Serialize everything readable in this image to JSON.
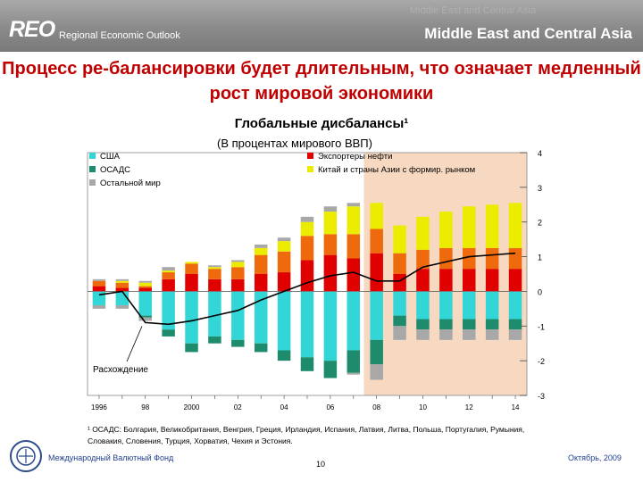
{
  "header": {
    "logo": "REO",
    "subtitle": "Regional Economic Outlook",
    "region": "Middle East and Central Asia"
  },
  "slide_title": "Процесс ре-балансировки будет длительным, что означает медленный рост мировой экономики",
  "chart_data": {
    "type": "bar",
    "title": "Глобальные дисбалансы¹",
    "subtitle": "(В процентах мирового ВВП)",
    "xlabel": "",
    "ylabel": "",
    "stacked": true,
    "x": [
      1996,
      1997,
      1998,
      1999,
      2000,
      2001,
      2002,
      2003,
      2004,
      2005,
      2006,
      2007,
      2008,
      2009,
      2010,
      2011,
      2012,
      2013,
      2014
    ],
    "x_ticks": [
      "1996",
      "98",
      "2000",
      "02",
      "04",
      "06",
      "08",
      "10",
      "12",
      "14"
    ],
    "ylim": [
      -3,
      4
    ],
    "y_ticks": [
      "4",
      "3",
      "2",
      "1",
      "0",
      "-1",
      "-2",
      "-3"
    ],
    "projection_shaded_from": 2008,
    "series": [
      {
        "name": "США",
        "color": "#33d6d6",
        "values": [
          -0.4,
          -0.4,
          -0.7,
          -1.1,
          -1.5,
          -1.3,
          -1.4,
          -1.5,
          -1.7,
          -1.9,
          -2.0,
          -1.7,
          -1.4,
          -0.7,
          -0.8,
          -0.8,
          -0.8,
          -0.8,
          -0.8
        ]
      },
      {
        "name": "ОСАДС",
        "color": "#1e8c6c",
        "values": [
          0.0,
          0.0,
          -0.05,
          -0.2,
          -0.25,
          -0.2,
          -0.2,
          -0.25,
          -0.3,
          -0.4,
          -0.5,
          -0.65,
          -0.7,
          -0.3,
          -0.3,
          -0.3,
          -0.3,
          -0.3,
          -0.3
        ]
      },
      {
        "name": "Остальной мир",
        "color": "#a8a8a8",
        "values": [
          -0.1,
          -0.1,
          -0.1,
          0,
          0,
          0,
          0,
          0,
          0,
          0,
          0,
          -0.05,
          -0.45,
          -0.4,
          -0.3,
          -0.3,
          -0.3,
          -0.3,
          -0.3
        ]
      },
      {
        "name": "Экспортеры нефти",
        "color": "#e00000",
        "values": [
          0.15,
          0.1,
          0.1,
          0.35,
          0.5,
          0.35,
          0.35,
          0.5,
          0.55,
          0.9,
          1.05,
          0.95,
          1.1,
          0.5,
          0.65,
          0.65,
          0.65,
          0.65,
          0.65
        ]
      },
      {
        "name": "Остальной мир",
        "color": "#ee6a0c",
        "values": [
          0.15,
          0.15,
          0.05,
          0.2,
          0.3,
          0.3,
          0.35,
          0.55,
          0.6,
          0.7,
          0.6,
          0.7,
          0.7,
          0.6,
          0.55,
          0.6,
          0.6,
          0.6,
          0.6
        ]
      },
      {
        "name": "Китай и страны Азии с формир. рынком",
        "color": "#ecec00",
        "values": [
          0.0,
          0.05,
          0.1,
          0.05,
          0.05,
          0.05,
          0.15,
          0.2,
          0.3,
          0.4,
          0.65,
          0.8,
          0.75,
          0.8,
          0.95,
          1.05,
          1.2,
          1.25,
          1.3
        ]
      },
      {
        "name": "Остальной мир",
        "color": "#a8a8a8",
        "values": [
          0.05,
          0.05,
          0.05,
          0.1,
          0.0,
          0.05,
          0.05,
          0.1,
          0.1,
          0.15,
          0.15,
          0.1,
          0.0,
          0.0,
          0.0,
          0.0,
          0.0,
          0.0,
          0.0
        ]
      }
    ],
    "divergence_line": {
      "name": "Расхождение",
      "color": "#000000",
      "values": [
        -0.1,
        0.0,
        -0.9,
        -0.95,
        -0.85,
        -0.7,
        -0.55,
        -0.25,
        0.0,
        0.25,
        0.45,
        0.55,
        0.3,
        0.3,
        0.7,
        0.85,
        1.0,
        1.05,
        1.1
      ]
    },
    "legend": [
      {
        "label": "США",
        "color": "#33d6d6"
      },
      {
        "label": "Экспортеры нефти",
        "color": "#e00000"
      },
      {
        "label": "ОСАДС",
        "color": "#1e8c6c"
      },
      {
        "label": "Китай и страны Азии с формир. рынком",
        "color": "#ecec00"
      },
      {
        "label": "Остальной мир",
        "color": "#a8a8a8"
      }
    ],
    "legend_position": "top-left"
  },
  "footnote": "¹ ОСАДС: Болгария, Великобритания, Венгрия, Греция, Ирландия, Испания, Латвия, Литва, Польша, Португалия, Румыния, Словакия, Словения, Турция, Хорватия, Чехия и Эстония.",
  "footer": {
    "org": "Международный Валютный Фонд",
    "page": "10",
    "date": "Октябрь, 2009"
  }
}
